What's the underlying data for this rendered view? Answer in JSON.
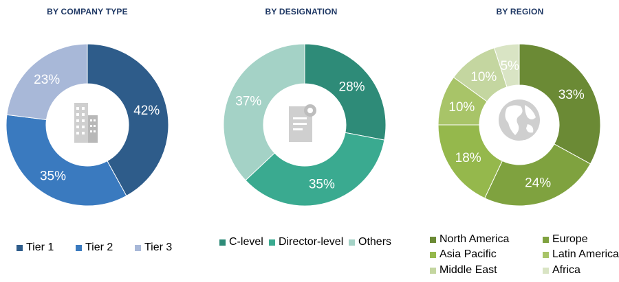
{
  "chart_data": [
    {
      "type": "donut",
      "title": "BY COMPANY TYPE",
      "center_icon": "building-icon",
      "categories": [
        "Tier 1",
        "Tier 2",
        "Tier 3"
      ],
      "values": [
        42,
        35,
        23
      ],
      "labels": [
        "42%",
        "35%",
        "23%"
      ],
      "colors": [
        "#2e5c8a",
        "#3a7abf",
        "#a8b8d8"
      ],
      "legend_placement": "bottom"
    },
    {
      "type": "donut",
      "title": "BY DESIGNATION",
      "center_icon": "document-icon",
      "categories": [
        "C-level",
        "Director-level",
        "Others"
      ],
      "values": [
        28,
        35,
        37
      ],
      "labels": [
        "28%",
        "35%",
        "37%"
      ],
      "colors": [
        "#2e8b78",
        "#3aaa90",
        "#a4d2c6"
      ],
      "legend_placement": "bottom"
    },
    {
      "type": "donut",
      "title": "BY REGION",
      "center_icon": "globe-icon",
      "categories": [
        "North America",
        "Europe",
        "Asia Pacific",
        "Latin America",
        "Middle East",
        "Africa"
      ],
      "values": [
        33,
        24,
        18,
        10,
        10,
        5
      ],
      "labels": [
        "33%",
        "24%",
        "18%",
        "10%",
        "10%",
        "5%"
      ],
      "colors": [
        "#6b8a35",
        "#7fa23f",
        "#95b84c",
        "#a8c468",
        "#c4d6a0",
        "#d9e4c4"
      ],
      "legend_placement": "bottom"
    }
  ]
}
